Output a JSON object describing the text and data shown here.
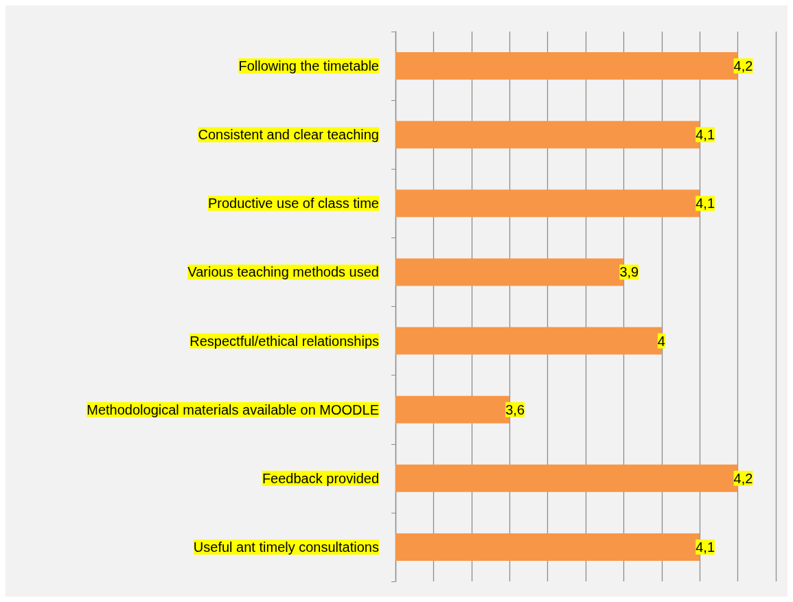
{
  "chart_data": {
    "type": "bar",
    "orientation": "horizontal",
    "categories": [
      "Following the timetable",
      "Consistent and clear teaching",
      "Productive use of class time",
      "Various teaching methods used",
      "Respectful/ethical relationships",
      "Methodological materials available on MOODLE",
      "Feedback provided",
      "Useful ant timely consultations"
    ],
    "values": [
      4.2,
      4.1,
      4.1,
      3.9,
      4,
      3.6,
      4.2,
      4.1
    ],
    "value_labels": [
      "4,2",
      "4,1",
      "4,1",
      "3,9",
      "4",
      "3,6",
      "4,2",
      "4,1"
    ],
    "color": "#f79646",
    "xlim": [
      3.3,
      4.3
    ],
    "xticks": [
      {
        "value": 3.3,
        "label": null
      },
      {
        "value": 3.4,
        "label": null
      },
      {
        "value": 3.5,
        "label": null
      },
      {
        "value": 3.6,
        "label": null
      },
      {
        "value": 3.7,
        "label": null
      },
      {
        "value": 3.8,
        "label": null
      },
      {
        "value": 3.9,
        "label": null
      },
      {
        "value": 4.0,
        "label": null
      },
      {
        "value": 4.1,
        "label": null
      },
      {
        "value": 4.2,
        "label": null
      },
      {
        "value": 4.3,
        "label": null
      }
    ],
    "tick_labels": "y",
    "grid": "x"
  }
}
